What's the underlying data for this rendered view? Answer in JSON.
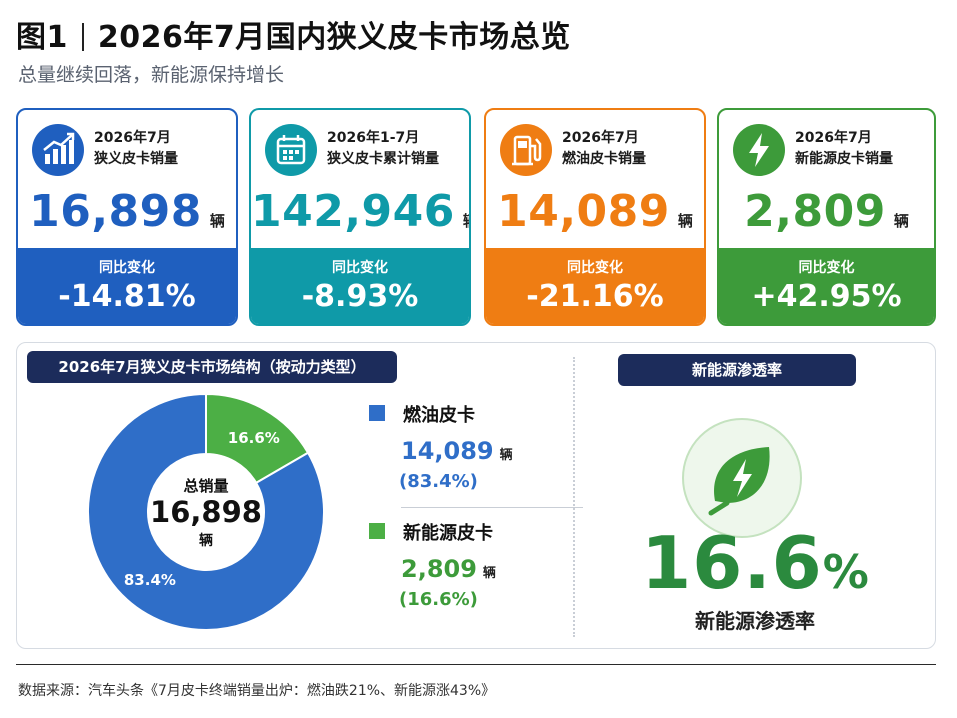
{
  "header": {
    "fig_label": "图1",
    "title": "2026年7月国内狭义皮卡市场总览",
    "subtitle": "总量继续回落，新能源保持增长"
  },
  "colors": {
    "blue": "#1f5fbf",
    "teal": "#0f9aa8",
    "orange": "#ef7d13",
    "green": "#3d9b3a",
    "navy": "#1c2c5b"
  },
  "cards": [
    {
      "icon": "bar-chart-icon",
      "line1": "2026年7月",
      "line2": "狭义皮卡销量",
      "value": "16,898",
      "unit": "辆",
      "change_label": "同比变化",
      "change": "-14.81%"
    },
    {
      "icon": "calendar-icon",
      "line1": "2026年1-7月",
      "line2": "狭义皮卡累计销量",
      "value": "142,946",
      "unit": "辆",
      "change_label": "同比变化",
      "change": "-8.93%"
    },
    {
      "icon": "fuel-pump-icon",
      "line1": "2026年7月",
      "line2": "燃油皮卡销量",
      "value": "14,089",
      "unit": "辆",
      "change_label": "同比变化",
      "change": "-21.16%"
    },
    {
      "icon": "lightning-icon",
      "line1": "2026年7月",
      "line2": "新能源皮卡销量",
      "value": "2,809",
      "unit": "辆",
      "change_label": "同比变化",
      "change": "+42.95%"
    }
  ],
  "structure": {
    "heading": "2026年7月狭义皮卡市场结构（按动力类型）",
    "center_label": "总销量",
    "center_value": "16,898",
    "center_unit": "辆"
  },
  "chart_data": {
    "type": "pie",
    "title": "2026年7月狭义皮卡市场结构（按动力类型）",
    "total": 16898,
    "slices": [
      {
        "name": "燃油皮卡",
        "value": 14089,
        "value_text": "14,089",
        "unit": "辆",
        "share": 83.4,
        "share_text": "(83.4%)",
        "label": "83.4%",
        "color": "#2f6ec8"
      },
      {
        "name": "新能源皮卡",
        "value": 2809,
        "value_text": "2,809",
        "unit": "辆",
        "share": 16.6,
        "share_text": "(16.6%)",
        "label": "16.6%",
        "color": "#4caf45"
      }
    ]
  },
  "penetration": {
    "heading": "新能源渗透率",
    "value": "16.6",
    "percent_sign": "%",
    "caption": "新能源渗透率",
    "icon": "leaf-lightning-icon"
  },
  "source": "数据来源：汽车头条《7月皮卡终端销量出炉：燃油跌21%、新能源涨43%》"
}
